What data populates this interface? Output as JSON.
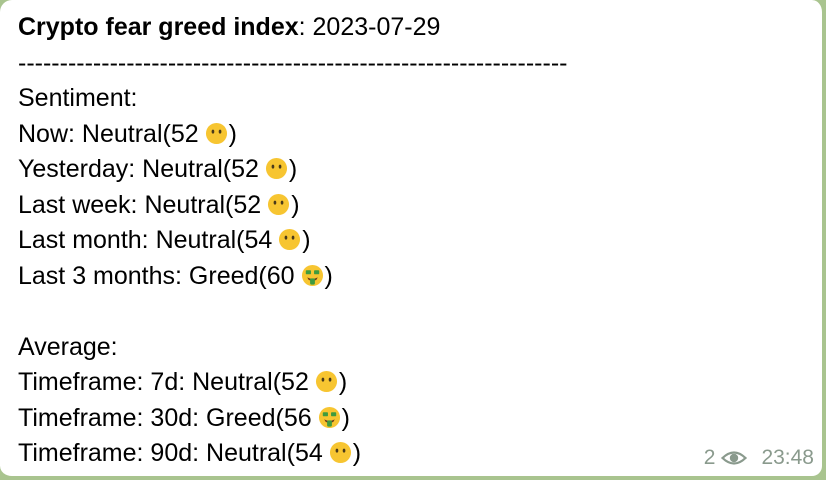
{
  "message": {
    "title_bold": "Crypto fear greed index",
    "title_rest": ": 2023-07-29",
    "divider": "------------------------------------------------------------------",
    "sentiment_heading": "Sentiment:",
    "sentiment": [
      {
        "prefix": "Now: Neutral(52",
        "emoji": "neutral-face-emoji",
        "suffix": ")"
      },
      {
        "prefix": "Yesterday: Neutral(52",
        "emoji": "neutral-face-emoji",
        "suffix": ")"
      },
      {
        "prefix": "Last week: Neutral(52",
        "emoji": "neutral-face-emoji",
        "suffix": ")"
      },
      {
        "prefix": "Last month: Neutral(54",
        "emoji": "neutral-face-emoji",
        "suffix": ")"
      },
      {
        "prefix": "Last 3 months: Greed(60",
        "emoji": "money-mouth-face-emoji",
        "suffix": ")"
      }
    ],
    "average_heading": "Average:",
    "average": [
      {
        "prefix": "Timeframe: 7d: Neutral(52",
        "emoji": "neutral-face-emoji",
        "suffix": ")"
      },
      {
        "prefix": "Timeframe: 30d: Greed(56",
        "emoji": "money-mouth-face-emoji",
        "suffix": ")"
      },
      {
        "prefix": "Timeframe: 90d: Neutral(54",
        "emoji": "neutral-face-emoji",
        "suffix": ")"
      }
    ],
    "views": "2",
    "views_icon": "eye-icon",
    "time": "23:48"
  },
  "colors": {
    "chat_background": "#a9c48f",
    "bubble": "#ffffff",
    "meta_text": "#8a9a8d",
    "emoji_face": "#f7c531"
  }
}
